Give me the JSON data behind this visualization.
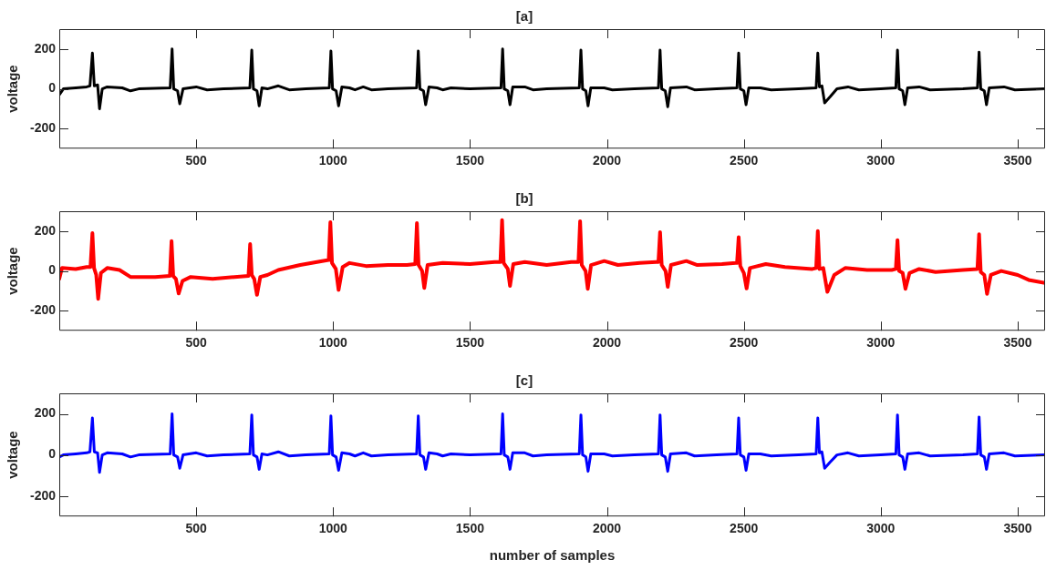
{
  "chart_data": [
    {
      "type": "line",
      "title": "[a]",
      "ylabel": "voltage",
      "xlim": [
        0,
        3600
      ],
      "xticks": [
        500,
        1000,
        1500,
        2000,
        2500,
        3000,
        3500
      ],
      "ylim": [
        -300,
        300
      ],
      "yticks": [
        -200,
        0,
        200
      ],
      "grid": false,
      "legend": false,
      "marker": "none",
      "line_style": "solid",
      "series": [
        {
          "color": "#000000",
          "x": [
            0,
            15,
            60,
            100,
            112,
            121,
            128,
            140,
            147,
            157,
            175,
            230,
            260,
            290,
            405,
            412,
            418,
            432,
            440,
            452,
            500,
            540,
            600,
            696,
            703,
            709,
            722,
            730,
            740,
            760,
            800,
            840,
            900,
            986,
            992,
            998,
            1011,
            1020,
            1032,
            1060,
            1080,
            1110,
            1140,
            1200,
            1305,
            1311,
            1317,
            1330,
            1338,
            1350,
            1380,
            1400,
            1430,
            1500,
            1613,
            1619,
            1625,
            1638,
            1646,
            1656,
            1700,
            1730,
            1780,
            1899,
            1905,
            1911,
            1923,
            1931,
            1941,
            1990,
            2020,
            2100,
            2188,
            2194,
            2200,
            2213,
            2222,
            2232,
            2290,
            2320,
            2400,
            2475,
            2481,
            2487,
            2500,
            2508,
            2518,
            2560,
            2600,
            2700,
            2764,
            2770,
            2776,
            2785,
            2795,
            2815,
            2840,
            2880,
            2920,
            3000,
            3055,
            3061,
            3067,
            3080,
            3088,
            3098,
            3140,
            3180,
            3300,
            3353,
            3359,
            3365,
            3378,
            3386,
            3396,
            3450,
            3490,
            3600
          ],
          "values": [
            -30,
            0,
            5,
            10,
            15,
            180,
            15,
            20,
            -100,
            0,
            10,
            5,
            -10,
            0,
            5,
            200,
            0,
            -10,
            -75,
            0,
            10,
            -5,
            0,
            5,
            195,
            0,
            -10,
            -85,
            5,
            0,
            15,
            -5,
            0,
            5,
            190,
            0,
            -10,
            -85,
            10,
            5,
            -5,
            10,
            -5,
            0,
            5,
            190,
            0,
            -10,
            -80,
            10,
            5,
            -5,
            5,
            0,
            5,
            200,
            0,
            -10,
            -80,
            10,
            10,
            -5,
            0,
            5,
            195,
            0,
            -10,
            -85,
            5,
            5,
            -5,
            0,
            5,
            195,
            0,
            -10,
            -90,
            5,
            10,
            -5,
            0,
            5,
            180,
            0,
            -10,
            -80,
            5,
            5,
            -5,
            0,
            5,
            180,
            10,
            15,
            -70,
            -40,
            0,
            10,
            -5,
            0,
            5,
            195,
            0,
            -10,
            -80,
            5,
            10,
            -5,
            0,
            5,
            185,
            0,
            -10,
            -80,
            5,
            10,
            -5,
            0
          ]
        }
      ]
    },
    {
      "type": "line",
      "title": "[b]",
      "ylabel": "voltage",
      "xlim": [
        0,
        3600
      ],
      "xticks": [
        500,
        1000,
        1500,
        2000,
        2500,
        3000,
        3500
      ],
      "ylim": [
        -300,
        300
      ],
      "yticks": [
        -200,
        0,
        200
      ],
      "grid": false,
      "legend": false,
      "marker": "none",
      "line_style": "solid",
      "series": [
        {
          "color": "#ff0000",
          "x": [
            0,
            10,
            60,
            100,
            114,
            121,
            127,
            135,
            142,
            152,
            175,
            220,
            260,
            350,
            404,
            410,
            416,
            426,
            436,
            450,
            480,
            560,
            640,
            691,
            697,
            703,
            712,
            722,
            734,
            760,
            800,
            880,
            960,
            984,
            990,
            996,
            1010,
            1020,
            1035,
            1060,
            1120,
            1200,
            1270,
            1300,
            1306,
            1312,
            1325,
            1333,
            1345,
            1400,
            1500,
            1590,
            1611,
            1617,
            1623,
            1638,
            1646,
            1658,
            1700,
            1780,
            1870,
            1896,
            1902,
            1908,
            1922,
            1930,
            1942,
            1990,
            2040,
            2120,
            2180,
            2188,
            2194,
            2200,
            2214,
            2222,
            2234,
            2290,
            2330,
            2420,
            2470,
            2475,
            2481,
            2487,
            2500,
            2510,
            2522,
            2580,
            2650,
            2750,
            2764,
            2770,
            2776,
            2790,
            2805,
            2830,
            2870,
            2950,
            3040,
            3055,
            3061,
            3067,
            3080,
            3090,
            3105,
            3140,
            3200,
            3300,
            3353,
            3359,
            3365,
            3378,
            3388,
            3402,
            3440,
            3500,
            3540,
            3600
          ],
          "values": [
            -40,
            15,
            10,
            20,
            20,
            190,
            15,
            -20,
            -140,
            -10,
            15,
            5,
            -30,
            -30,
            -25,
            150,
            -25,
            -40,
            -113,
            -50,
            -30,
            -40,
            -30,
            -25,
            135,
            -20,
            -40,
            -120,
            -30,
            -20,
            5,
            30,
            50,
            55,
            245,
            40,
            10,
            -95,
            20,
            40,
            25,
            30,
            30,
            35,
            240,
            30,
            0,
            -85,
            30,
            40,
            35,
            45,
            45,
            255,
            40,
            10,
            -75,
            35,
            45,
            30,
            45,
            45,
            250,
            30,
            0,
            -90,
            30,
            50,
            30,
            40,
            45,
            45,
            195,
            30,
            0,
            -80,
            30,
            50,
            30,
            35,
            40,
            40,
            170,
            25,
            -10,
            -88,
            15,
            35,
            20,
            10,
            15,
            200,
            10,
            15,
            -105,
            -20,
            15,
            5,
            5,
            10,
            155,
            0,
            -10,
            -90,
            -10,
            10,
            -5,
            5,
            10,
            185,
            -5,
            -20,
            -115,
            -20,
            0,
            -20,
            -45,
            -60
          ]
        }
      ]
    },
    {
      "type": "line",
      "title": "[c]",
      "xlabel": "number of samples",
      "ylabel": "voltage",
      "xlim": [
        0,
        3600
      ],
      "xticks": [
        500,
        1000,
        1500,
        2000,
        2500,
        3000,
        3500
      ],
      "ylim": [
        -300,
        300
      ],
      "yticks": [
        -200,
        0,
        200
      ],
      "grid": false,
      "legend": false,
      "marker": "none",
      "line_style": "solid",
      "series": [
        {
          "color": "#0000ff",
          "x": [
            0,
            15,
            60,
            100,
            112,
            121,
            128,
            140,
            147,
            157,
            175,
            230,
            260,
            290,
            405,
            412,
            418,
            432,
            440,
            452,
            500,
            540,
            600,
            696,
            703,
            709,
            722,
            730,
            740,
            760,
            800,
            840,
            900,
            986,
            992,
            998,
            1011,
            1020,
            1032,
            1060,
            1080,
            1110,
            1140,
            1200,
            1305,
            1311,
            1317,
            1330,
            1338,
            1350,
            1380,
            1400,
            1430,
            1500,
            1613,
            1619,
            1625,
            1638,
            1646,
            1656,
            1700,
            1730,
            1780,
            1899,
            1905,
            1911,
            1923,
            1931,
            1941,
            1990,
            2020,
            2100,
            2188,
            2194,
            2200,
            2213,
            2222,
            2232,
            2290,
            2320,
            2400,
            2475,
            2481,
            2487,
            2500,
            2508,
            2518,
            2560,
            2600,
            2700,
            2764,
            2770,
            2776,
            2785,
            2795,
            2815,
            2840,
            2880,
            2920,
            3000,
            3055,
            3061,
            3067,
            3080,
            3088,
            3098,
            3140,
            3180,
            3300,
            3353,
            3359,
            3365,
            3378,
            3386,
            3396,
            3450,
            3490,
            3600
          ],
          "values": [
            -10,
            0,
            5,
            10,
            15,
            180,
            15,
            10,
            -85,
            0,
            10,
            5,
            -10,
            0,
            5,
            200,
            0,
            -10,
            -65,
            0,
            10,
            -5,
            0,
            5,
            195,
            0,
            -10,
            -70,
            5,
            0,
            15,
            -5,
            0,
            5,
            190,
            0,
            -10,
            -75,
            10,
            5,
            -5,
            10,
            -5,
            0,
            5,
            190,
            0,
            -10,
            -70,
            10,
            5,
            -5,
            5,
            0,
            5,
            200,
            0,
            -10,
            -70,
            10,
            10,
            -5,
            0,
            5,
            195,
            0,
            -10,
            -80,
            5,
            5,
            -5,
            0,
            5,
            195,
            0,
            -10,
            -80,
            5,
            10,
            -5,
            0,
            5,
            180,
            0,
            -10,
            -75,
            5,
            5,
            -5,
            0,
            5,
            180,
            10,
            15,
            -65,
            -35,
            0,
            10,
            -5,
            0,
            5,
            195,
            0,
            -10,
            -70,
            5,
            10,
            -5,
            0,
            5,
            185,
            0,
            -10,
            -70,
            5,
            10,
            -5,
            0
          ]
        }
      ]
    }
  ]
}
